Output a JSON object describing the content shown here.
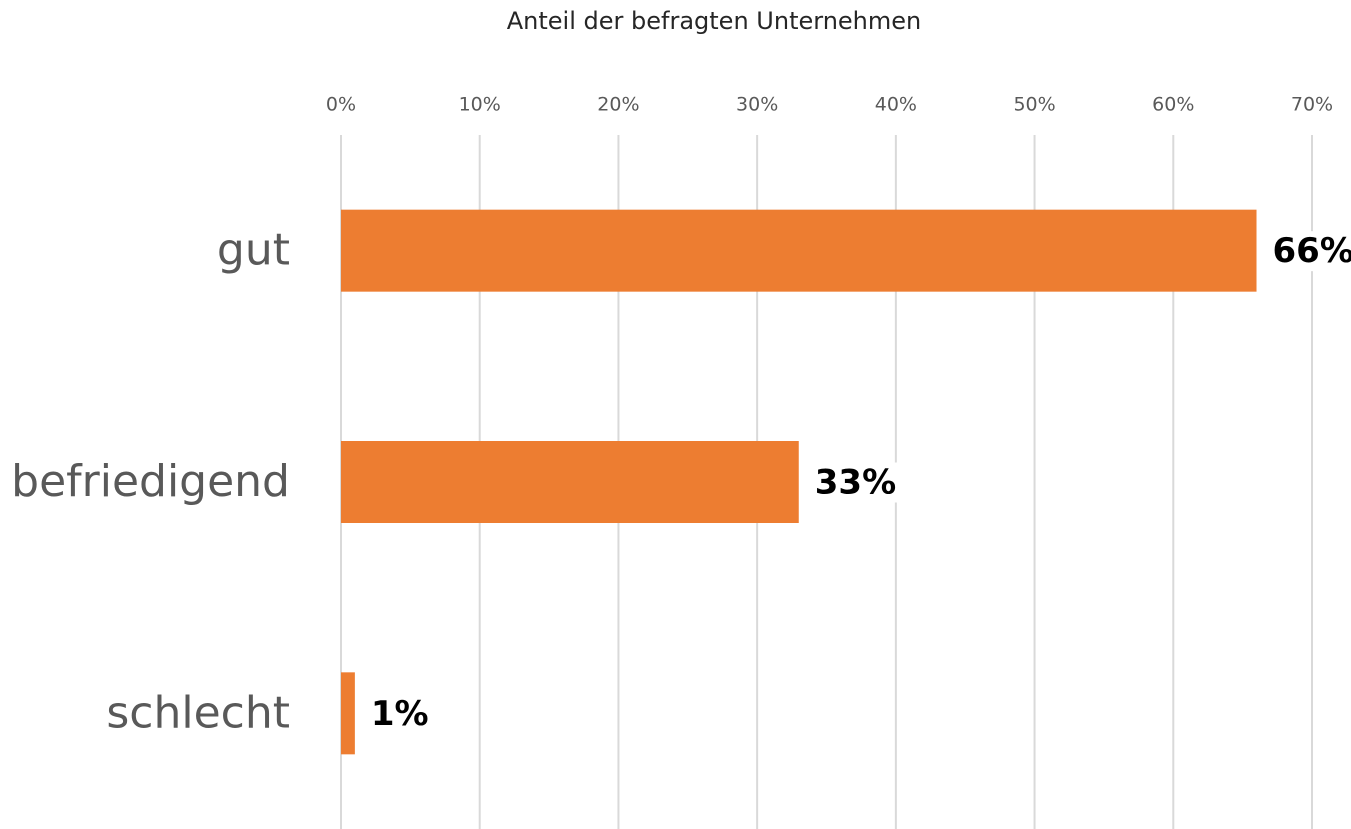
{
  "chart_data": {
    "type": "bar",
    "orientation": "horizontal",
    "x_label": "Anteil der befragten Unternehmen",
    "categories": [
      "gut",
      "befriedigend",
      "schlecht"
    ],
    "values": [
      66,
      33,
      1
    ],
    "value_labels": [
      "66%",
      "33%",
      "1%"
    ],
    "color": "#ed7d31",
    "xlim": [
      0,
      70
    ],
    "xticks": [
      {
        "value": 0,
        "label": "0%"
      },
      {
        "value": 10,
        "label": "10%"
      },
      {
        "value": 20,
        "label": "20%"
      },
      {
        "value": 30,
        "label": "30%"
      },
      {
        "value": 40,
        "label": "40%"
      },
      {
        "value": 50,
        "label": "50%"
      },
      {
        "value": 60,
        "label": "60%"
      },
      {
        "value": 70,
        "label": "70%"
      }
    ],
    "grid": true
  }
}
